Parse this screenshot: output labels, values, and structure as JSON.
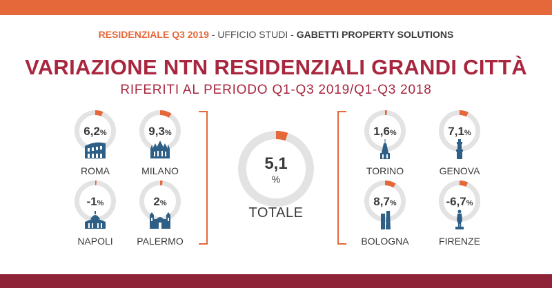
{
  "header": {
    "accent": "RESIDENZIALE Q3 2019",
    "sep1": " - ",
    "middle": "UFFICIO STUDI",
    "sep2": " - ",
    "company": "GABETTI PROPERTY SOLUTIONS"
  },
  "title": "VARIAZIONE NTN RESIDENZIALI GRANDI CITTÀ",
  "subtitle": "RIFERITI AL PERIODO Q1-Q3 2019/Q1-Q3 2018",
  "colors": {
    "accent": "#e4683a",
    "title": "#a8263e",
    "icon": "#2e5f86",
    "ring": "#e3e3e3",
    "bottom": "#8e2338"
  },
  "total": {
    "label": "TOTALE",
    "value": "5,1",
    "unit": "%",
    "fraction": 0.051
  },
  "cities": [
    {
      "name": "ROMA",
      "value": "6,2",
      "unit": "%",
      "fraction": 0.062,
      "icon": "colosseum-icon"
    },
    {
      "name": "MILANO",
      "value": "9,3",
      "unit": "%",
      "fraction": 0.093,
      "icon": "duomo-icon"
    },
    {
      "name": "NAPOLI",
      "value": "-1",
      "unit": "%",
      "fraction": -0.01,
      "icon": "domed-church-icon"
    },
    {
      "name": "PALERMO",
      "value": "2",
      "unit": "%",
      "fraction": 0.02,
      "icon": "cathedral-icon"
    },
    {
      "name": "TORINO",
      "value": "1,6",
      "unit": "%",
      "fraction": 0.016,
      "icon": "mole-antonelliana-icon"
    },
    {
      "name": "GENOVA",
      "value": "7,1",
      "unit": "%",
      "fraction": 0.071,
      "icon": "lighthouse-icon"
    },
    {
      "name": "BOLOGNA",
      "value": "8,7",
      "unit": "%",
      "fraction": 0.087,
      "icon": "towers-icon"
    },
    {
      "name": "FIRENZE",
      "value": "-6,7",
      "unit": "%",
      "fraction": -0.067,
      "icon": "david-statue-icon"
    }
  ]
}
